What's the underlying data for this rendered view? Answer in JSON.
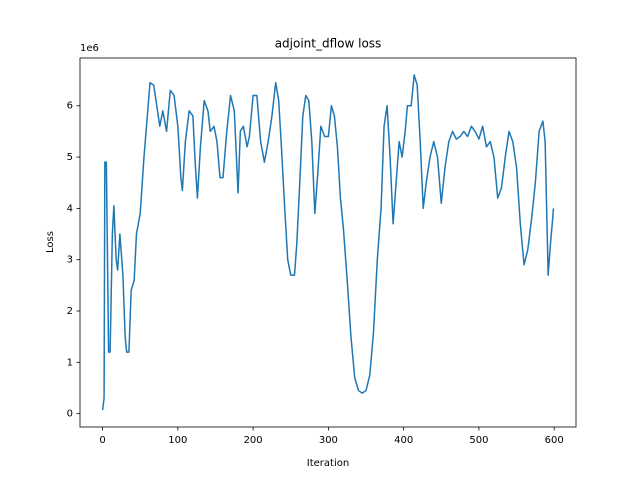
{
  "chart_data": {
    "type": "line",
    "title": "adjoint_dflow loss",
    "x_label": "Iteration",
    "y_label": "Loss",
    "y_offset_label": "1e6",
    "color": "#1f77b4",
    "x": [
      0,
      2,
      3,
      5,
      8,
      10,
      13,
      15,
      18,
      20,
      23,
      27,
      30,
      32,
      35,
      38,
      42,
      45,
      50,
      55,
      60,
      63,
      68,
      72,
      76,
      80,
      85,
      90,
      95,
      100,
      104,
      106,
      110,
      115,
      120,
      123,
      126,
      130,
      135,
      140,
      143,
      148,
      152,
      156,
      160,
      165,
      170,
      175,
      180,
      183,
      187,
      192,
      195,
      200,
      205,
      210,
      215,
      220,
      225,
      230,
      234,
      238,
      242,
      246,
      250,
      255,
      258,
      262,
      266,
      270,
      274,
      278,
      282,
      286,
      290,
      295,
      300,
      304,
      308,
      312,
      316,
      320,
      325,
      330,
      335,
      340,
      345,
      350,
      355,
      360,
      365,
      370,
      374,
      378,
      382,
      386,
      390,
      394,
      398,
      402,
      405,
      410,
      414,
      418,
      422,
      426,
      430,
      435,
      440,
      445,
      450,
      455,
      460,
      465,
      470,
      475,
      480,
      485,
      490,
      495,
      500,
      505,
      510,
      515,
      520,
      525,
      530,
      535,
      540,
      545,
      550,
      555,
      560,
      565,
      570,
      575,
      580,
      585,
      588,
      592,
      595,
      598,
      599
    ],
    "values": [
      0.07,
      0.3,
      4.9,
      4.9,
      1.2,
      1.2,
      3.5,
      4.05,
      3.0,
      2.8,
      3.5,
      2.7,
      1.5,
      1.2,
      1.2,
      2.4,
      2.6,
      3.5,
      3.9,
      5.0,
      5.9,
      6.45,
      6.4,
      6.0,
      5.6,
      5.9,
      5.5,
      6.3,
      6.2,
      5.6,
      4.6,
      4.35,
      5.3,
      5.9,
      5.8,
      4.9,
      4.2,
      5.2,
      6.1,
      5.9,
      5.5,
      5.6,
      5.3,
      4.6,
      4.6,
      5.5,
      6.2,
      5.9,
      4.3,
      5.5,
      5.6,
      5.2,
      5.4,
      6.2,
      6.2,
      5.3,
      4.9,
      5.3,
      5.8,
      6.45,
      6.1,
      5.1,
      4.0,
      3.0,
      2.7,
      2.7,
      3.3,
      4.5,
      5.8,
      6.2,
      6.1,
      5.3,
      3.9,
      4.7,
      5.6,
      5.4,
      5.4,
      6.0,
      5.8,
      5.2,
      4.2,
      3.6,
      2.6,
      1.5,
      0.7,
      0.45,
      0.4,
      0.45,
      0.75,
      1.6,
      3.0,
      4.0,
      5.6,
      6.0,
      5.0,
      3.7,
      4.5,
      5.3,
      5.0,
      5.5,
      6.0,
      6.0,
      6.6,
      6.4,
      5.3,
      4.0,
      4.5,
      5.0,
      5.3,
      5.0,
      4.1,
      4.8,
      5.3,
      5.5,
      5.35,
      5.4,
      5.5,
      5.4,
      5.6,
      5.5,
      5.35,
      5.6,
      5.2,
      5.3,
      5.0,
      4.2,
      4.4,
      5.0,
      5.5,
      5.3,
      4.8,
      3.7,
      2.9,
      3.2,
      3.8,
      4.5,
      5.5,
      5.7,
      5.3,
      2.7,
      3.3,
      3.8,
      4.0
    ],
    "xlim": [
      -30,
      629
    ],
    "ylim": [
      -0.26,
      6.93
    ],
    "xticks": [
      0,
      100,
      200,
      300,
      400,
      500,
      600
    ],
    "yticks": [
      0,
      1,
      2,
      3,
      4,
      5,
      6
    ]
  }
}
